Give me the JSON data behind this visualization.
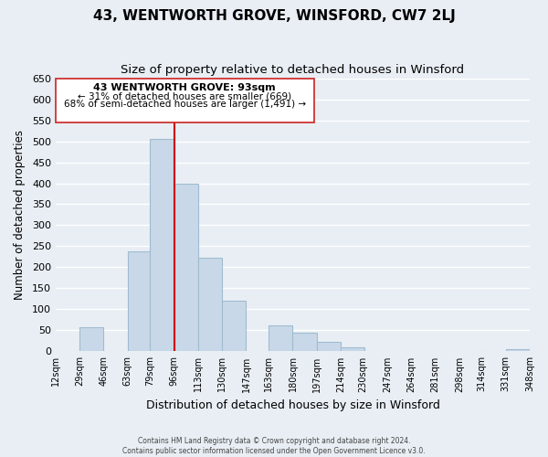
{
  "title": "43, WENTWORTH GROVE, WINSFORD, CW7 2LJ",
  "subtitle": "Size of property relative to detached houses in Winsford",
  "xlabel": "Distribution of detached houses by size in Winsford",
  "ylabel": "Number of detached properties",
  "bar_left_edges": [
    12,
    29,
    46,
    63,
    79,
    96,
    113,
    130,
    147,
    163,
    180,
    197,
    214,
    230,
    247,
    264,
    281,
    298,
    314,
    331
  ],
  "bar_heights": [
    0,
    57,
    0,
    238,
    505,
    400,
    222,
    120,
    0,
    62,
    45,
    23,
    10,
    0,
    0,
    0,
    0,
    0,
    0,
    5
  ],
  "bin_width": 17,
  "bar_color": "#c8d8e8",
  "bar_edgecolor": "#a0bcd0",
  "tick_labels": [
    "12sqm",
    "29sqm",
    "46sqm",
    "63sqm",
    "79sqm",
    "96sqm",
    "113sqm",
    "130sqm",
    "147sqm",
    "163sqm",
    "180sqm",
    "197sqm",
    "214sqm",
    "230sqm",
    "247sqm",
    "264sqm",
    "281sqm",
    "298sqm",
    "314sqm",
    "331sqm",
    "348sqm"
  ],
  "ylim": [
    0,
    650
  ],
  "yticks": [
    0,
    50,
    100,
    150,
    200,
    250,
    300,
    350,
    400,
    450,
    500,
    550,
    600,
    650
  ],
  "property_line_x": 96,
  "property_line_color": "#cc0000",
  "annotation_text_line1": "43 WENTWORTH GROVE: 93sqm",
  "annotation_text_line2": "← 31% of detached houses are smaller (669)",
  "annotation_text_line3": "68% of semi-detached houses are larger (1,491) →",
  "footer_line1": "Contains HM Land Registry data © Crown copyright and database right 2024.",
  "footer_line2": "Contains public sector information licensed under the Open Government Licence v3.0.",
  "background_color": "#e8eef4",
  "grid_color": "#ffffff",
  "title_fontsize": 11,
  "subtitle_fontsize": 9.5
}
